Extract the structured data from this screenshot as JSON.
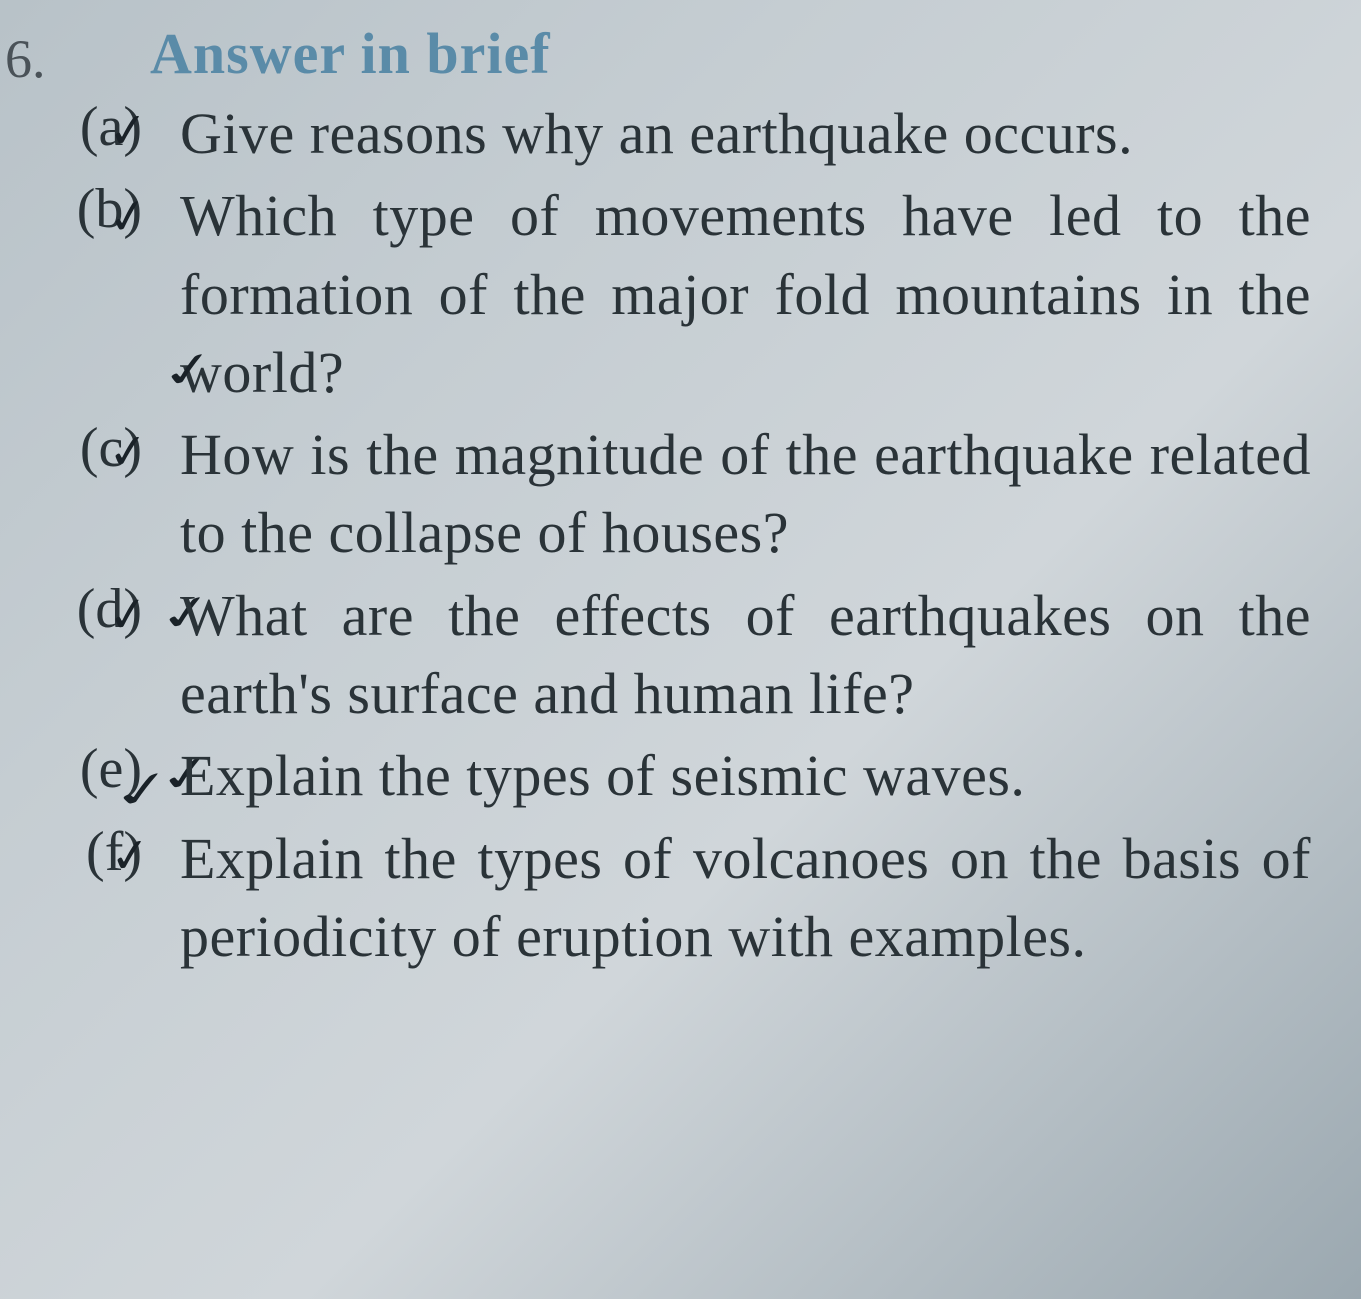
{
  "question_number": "6.",
  "heading": "Answer in brief",
  "items": [
    {
      "label": "(a)",
      "text": "Give reasons why an earthquake occurs."
    },
    {
      "label": "(b)",
      "text": "Which type of movements have led to the formation of the major fold mountains in the world?"
    },
    {
      "label": "(c)",
      "text": "How is the magnitude of the earthquake related to the collapse of houses?"
    },
    {
      "label": "(d)",
      "text": "What are the effects of earthquakes on the earth's surface and human life?"
    },
    {
      "label": "(e)",
      "text": "Explain the types of seismic waves."
    },
    {
      "label": "(f)",
      "text": "Explain the types of volcanoes on the basis of periodicity of eruption with examples."
    }
  ],
  "styling": {
    "background_gradient": [
      "#b8c2c8",
      "#c5cdd2",
      "#d0d6da",
      "#9ba8b0"
    ],
    "heading_color": "#5a8ba8",
    "text_color": "#2a3338",
    "number_color": "#4a5258",
    "heading_fontsize": 58,
    "text_fontsize": 58,
    "label_fontsize": 56,
    "font_family": "Georgia, Times New Roman, serif",
    "checkmark_glyph": "✓",
    "checkmark_color": "#1a2228"
  }
}
